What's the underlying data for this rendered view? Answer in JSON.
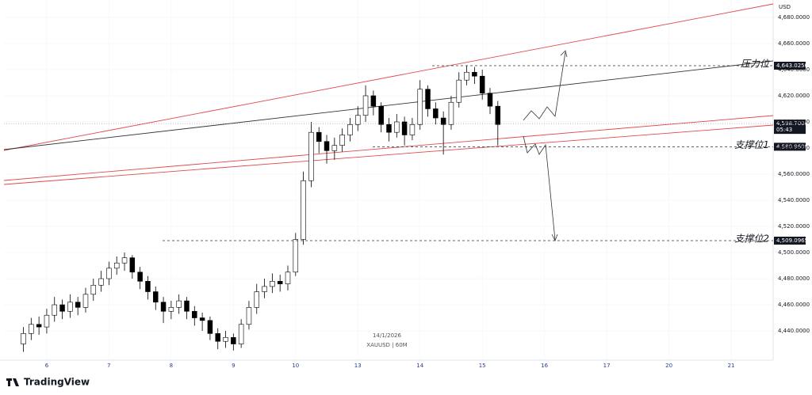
{
  "chart_data": {
    "type": "candlestick",
    "currency": "USD",
    "watermark_date": "14/1/2026",
    "watermark_symbol": "XAUUSD | 60M",
    "brand": "TradingView",
    "up_color": "#ffffff",
    "down_color": "#000000",
    "border_color": "#000000",
    "x": [
      0,
      1,
      2,
      3,
      4,
      5,
      6,
      7,
      8,
      9,
      10,
      11,
      12,
      13,
      14,
      15,
      16,
      17,
      18,
      19,
      20,
      21,
      22,
      23,
      24,
      25,
      26,
      27,
      28,
      29,
      30,
      31,
      32,
      33,
      34,
      35,
      36,
      37,
      38,
      39,
      40,
      41,
      42,
      43,
      44,
      45,
      46,
      47,
      48,
      49,
      50,
      51,
      52,
      53,
      54,
      55,
      56,
      57,
      58,
      59,
      60,
      61
    ],
    "open": [
      4430,
      4438,
      4445,
      4443,
      4452,
      4460,
      4455,
      4462,
      4458,
      4468,
      4475,
      4480,
      4488,
      4492,
      4496,
      4485,
      4478,
      4470,
      4462,
      4455,
      4458,
      4463,
      4455,
      4450,
      4448,
      4438,
      4432,
      4435,
      4430,
      4445,
      4458,
      4470,
      4474,
      4478,
      4476,
      4485,
      4510,
      4555,
      4592,
      4585,
      4578,
      4582,
      4590,
      4598,
      4605,
      4620,
      4612,
      4598,
      4592,
      4600,
      4590,
      4598,
      4625,
      4610,
      4603,
      4598,
      4615,
      4632,
      4638,
      4635,
      4622,
      4612
    ],
    "high": [
      4443,
      4450,
      4451,
      4457,
      4466,
      4464,
      4468,
      4466,
      4473,
      4480,
      4486,
      4493,
      4497,
      4500,
      4498,
      4489,
      4482,
      4474,
      4466,
      4463,
      4468,
      4466,
      4459,
      4454,
      4451,
      4442,
      4440,
      4438,
      4449,
      4463,
      4476,
      4480,
      4484,
      4483,
      4490,
      4515,
      4562,
      4600,
      4596,
      4590,
      4588,
      4595,
      4603,
      4612,
      4628,
      4624,
      4615,
      4603,
      4606,
      4604,
      4603,
      4632,
      4628,
      4615,
      4608,
      4620,
      4638,
      4643,
      4642,
      4640,
      4626,
      4616
    ],
    "low": [
      4424,
      4433,
      4437,
      4438,
      4447,
      4449,
      4450,
      4452,
      4454,
      4463,
      4470,
      4475,
      4483,
      4486,
      4480,
      4472,
      4464,
      4456,
      4446,
      4449,
      4453,
      4449,
      4444,
      4440,
      4433,
      4426,
      4427,
      4425,
      4427,
      4441,
      4453,
      4465,
      4469,
      4470,
      4471,
      4482,
      4506,
      4550,
      4576,
      4568,
      4571,
      4577,
      4585,
      4593,
      4600,
      4605,
      4592,
      4585,
      4588,
      4582,
      4586,
      4594,
      4604,
      4598,
      4575,
      4594,
      4611,
      4628,
      4629,
      4617,
      4606,
      4582
    ],
    "close": [
      4438,
      4445,
      4443,
      4452,
      4460,
      4455,
      4462,
      4458,
      4468,
      4475,
      4480,
      4488,
      4492,
      4496,
      4485,
      4478,
      4470,
      4462,
      4455,
      4458,
      4463,
      4455,
      4450,
      4448,
      4438,
      4432,
      4435,
      4430,
      4445,
      4458,
      4470,
      4474,
      4478,
      4476,
      4485,
      4510,
      4555,
      4592,
      4585,
      4578,
      4582,
      4590,
      4598,
      4605,
      4620,
      4612,
      4598,
      4592,
      4600,
      4590,
      4598,
      4625,
      4610,
      4603,
      4598,
      4615,
      4632,
      4638,
      4635,
      4622,
      4612,
      4598
    ],
    "xlim": [
      -2.5,
      96.4
    ],
    "xticks": [
      {
        "value": 3,
        "label": "6"
      },
      {
        "value": 11,
        "label": "7"
      },
      {
        "value": 19,
        "label": "8"
      },
      {
        "value": 27,
        "label": "9"
      },
      {
        "value": 35,
        "label": "10"
      },
      {
        "value": 43,
        "label": "13"
      },
      {
        "value": 51,
        "label": "14"
      },
      {
        "value": 59,
        "label": "15"
      },
      {
        "value": 67,
        "label": "16"
      },
      {
        "value": 75,
        "label": "17"
      },
      {
        "value": 83,
        "label": "20"
      },
      {
        "value": 91,
        "label": "21"
      }
    ],
    "ylim": [
      4417.6,
      4693.3
    ],
    "yticks": [
      {
        "value": 4440,
        "label": "4,440.0000"
      },
      {
        "value": 4460,
        "label": "4,460.0000"
      },
      {
        "value": 4480,
        "label": "4,480.0000"
      },
      {
        "value": 4500,
        "label": "4,500.0000"
      },
      {
        "value": 4520,
        "label": "4,520.0000"
      },
      {
        "value": 4540,
        "label": "4,540.0000"
      },
      {
        "value": 4560,
        "label": "4,560.0000"
      },
      {
        "value": 4580,
        "label": "4,580.0000"
      },
      {
        "value": 4600,
        "label": "4,600.0000"
      },
      {
        "value": 4620,
        "label": "4,620.0000"
      },
      {
        "value": 4640,
        "label": "4,640.0000"
      },
      {
        "value": 4660,
        "label": "4,660.0000"
      },
      {
        "value": 4680,
        "label": "4,680.0000"
      }
    ],
    "levels": [
      {
        "name": "压力位",
        "value": 4643.025,
        "label": "4,643.0250"
      },
      {
        "name": "支撑位1",
        "value": 4580.96,
        "label": "4,580.9600"
      },
      {
        "name": "支撑位2",
        "value": 4509.0965,
        "label": "4,509.0965"
      }
    ],
    "last_price": {
      "value": 4598.7,
      "label": "4,598.7000",
      "countdown": "05:43"
    }
  }
}
